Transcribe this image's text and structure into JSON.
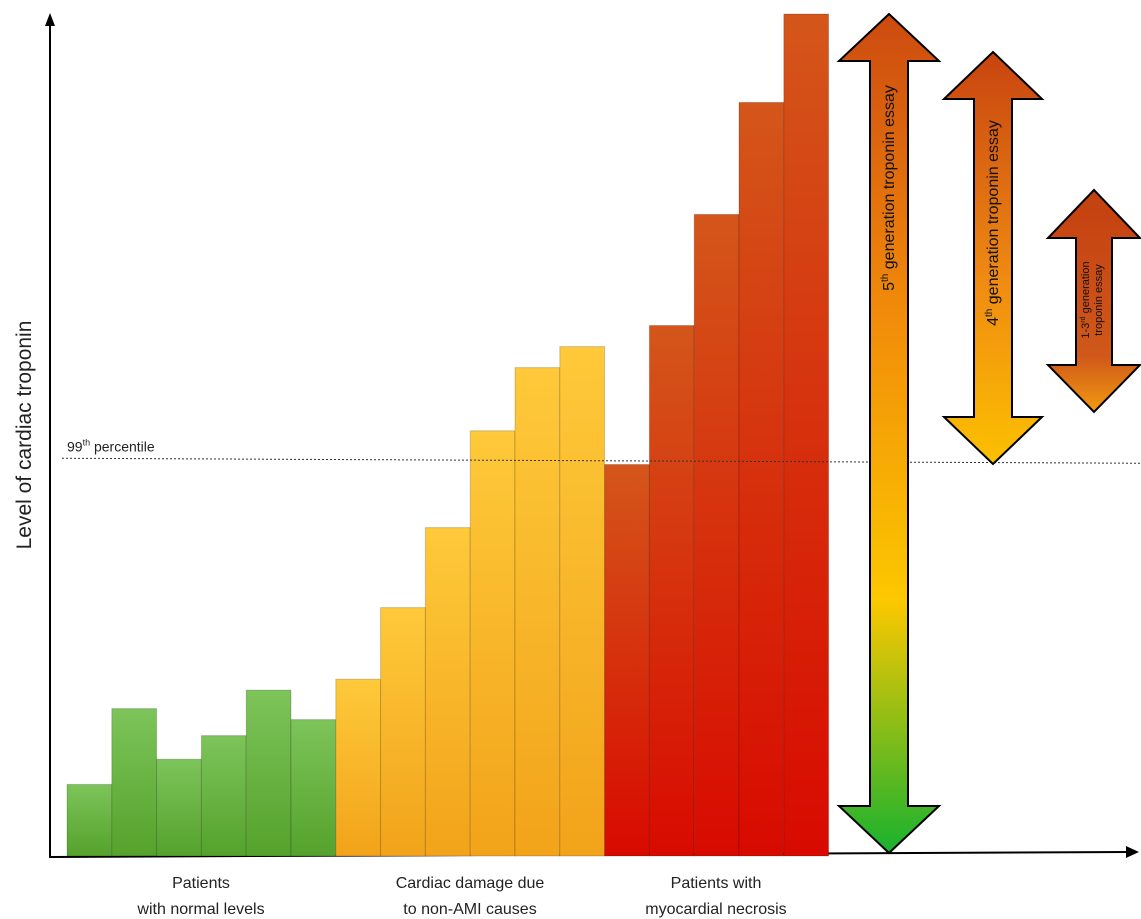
{
  "chart_data": {
    "type": "bar",
    "ylabel": "Level of cardiac troponin",
    "threshold": {
      "label_base": "99",
      "label_sup": "th",
      "label_rest": " percentile",
      "value": 47
    },
    "ylim": [
      0,
      100
    ],
    "groups": [
      {
        "name_line1": "Patients",
        "name_line2": "with normal levels",
        "values": [
          8.5,
          17.5,
          11.5,
          14.3,
          19.7,
          16.2
        ],
        "color_top": "#7dc45a",
        "color_bottom": "#55a22c"
      },
      {
        "name_line1": "Cardiac damage due",
        "name_line2": "to non-AMI causes",
        "values": [
          21.0,
          29.5,
          39.0,
          50.5,
          58.0,
          60.5
        ],
        "color_top": "#fec93a",
        "color_bottom": "#f2a31a"
      },
      {
        "name_line1": "Patients with",
        "name_line2": "myocardial necrosis",
        "values": [
          46.5,
          63.0,
          76.2,
          89.5,
          100.0
        ],
        "color_top": "#d4561a",
        "color_bottom": "#d80a00"
      }
    ],
    "assay_ranges": [
      {
        "sup_prefix": "5",
        "sup": "th",
        "text": " generation troponin essay",
        "range": [
          0,
          100
        ]
      },
      {
        "sup_prefix": "4",
        "sup": "th",
        "text": " generation troponin essay",
        "range": [
          46,
          93
        ]
      },
      {
        "sup_prefix": "1-3",
        "sup": "rd",
        "text": " generation",
        "text2": "troponin essay",
        "range": [
          53,
          79
        ]
      }
    ]
  }
}
